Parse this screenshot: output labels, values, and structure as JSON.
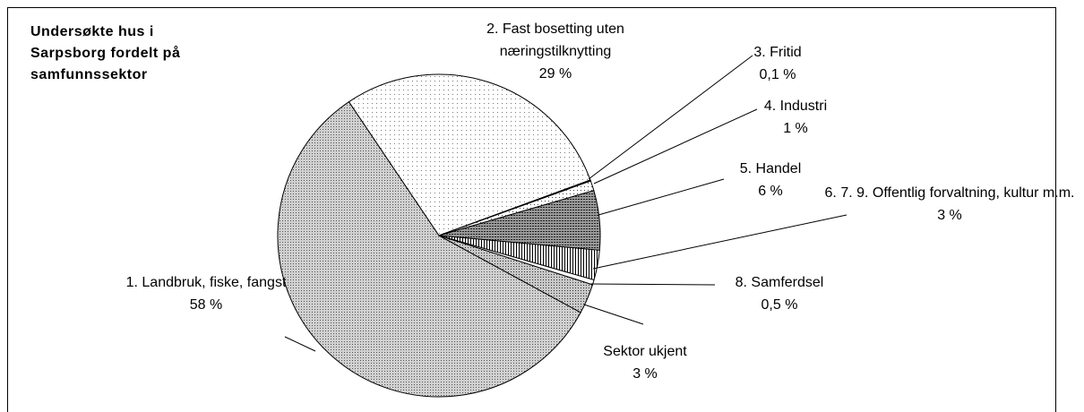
{
  "chart_data": {
    "type": "pie",
    "title": "Undersøkte hus i Sarpsborg fordelt på samfunnssektor",
    "categories": [
      "1. Landbruk, fiske, fangst",
      "2. Fast bosetting uten næringstilknytting",
      "3. Fritid",
      "4. Industri",
      "5. Handel",
      "6. 7. 9. Offentlig forvaltning, kultur m.m.",
      "8. Samferdsel",
      "Sektor ukjent"
    ],
    "values": [
      58,
      29,
      0.1,
      1,
      6,
      3,
      0.5,
      3
    ],
    "value_labels": [
      "58 %",
      "29 %",
      "0,1 %",
      "1 %",
      "6 %",
      "3 %",
      "0,5 %",
      "3 %"
    ],
    "colors": [
      "#a6a6a6",
      "#f2f2f2",
      "#000000",
      "#ffffff",
      "#7f7f7f",
      "#ffffff",
      "#ffffff",
      "#a6a6a6"
    ]
  }
}
